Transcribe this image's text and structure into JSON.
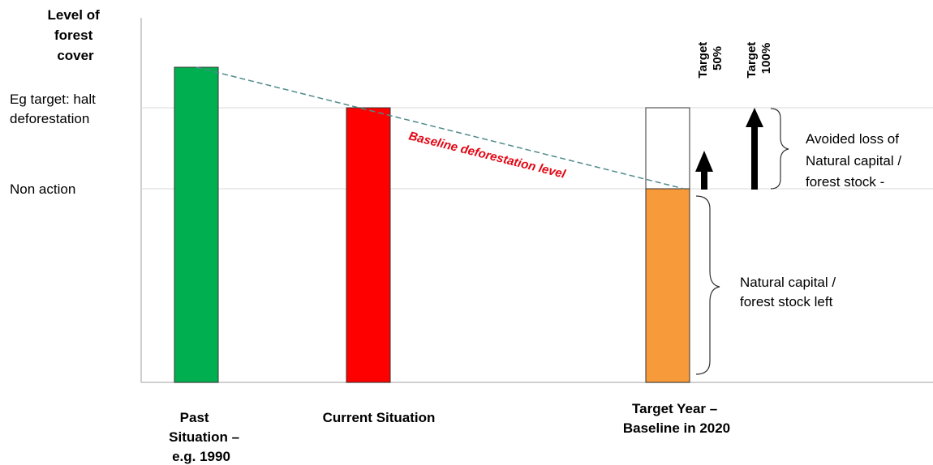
{
  "y_axis": {
    "title_lines": [
      "Level of",
      "forest",
      "cover"
    ],
    "levels": {
      "target": [
        "Eg target: halt",
        "deforestation"
      ],
      "non_action": "Non action"
    }
  },
  "bars": [
    {
      "label_lines": [
        "Past",
        "Situation –",
        "e.g. 1990"
      ],
      "color": "#00b050",
      "level": "high"
    },
    {
      "label_lines": [
        "Current Situation"
      ],
      "color": "#ff0000",
      "level": "target"
    },
    {
      "label_lines": [
        "Target Year –",
        "Baseline in 2020"
      ],
      "color": "#f79a3a",
      "level": "non_action",
      "target_box_color": "#ffffff"
    }
  ],
  "baseline": {
    "label": "Baseline deforestation level",
    "color": "#e30613",
    "line_color": "#4f8a8b"
  },
  "targets": [
    {
      "label_lines": [
        "Target",
        "50%"
      ],
      "fraction": 0.5
    },
    {
      "label_lines": [
        "Target",
        "100%"
      ],
      "fraction": 1.0
    }
  ],
  "annotations": {
    "avoided_loss": [
      "Avoided loss of",
      "Natural capital  /",
      "forest stock  -"
    ],
    "stock_left": [
      "Natural capital  /",
      "forest stock left"
    ]
  }
}
